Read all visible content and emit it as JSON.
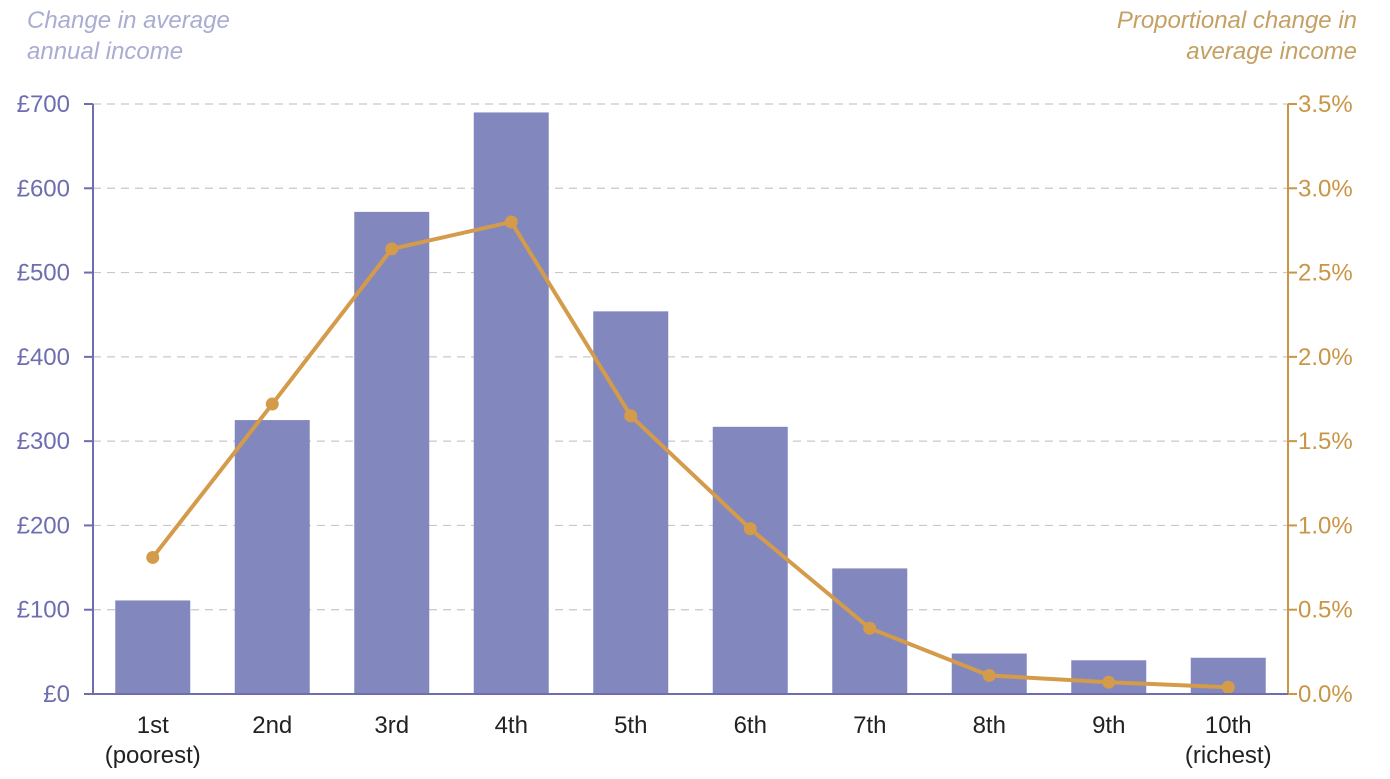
{
  "chart_data": {
    "type": "bar",
    "categories": [
      [
        "1st",
        "(poorest)"
      ],
      [
        "2nd"
      ],
      [
        "3rd"
      ],
      [
        "4th"
      ],
      [
        "5th"
      ],
      [
        "6th"
      ],
      [
        "7th"
      ],
      [
        "8th"
      ],
      [
        "9th"
      ],
      [
        "10th",
        "(richest)"
      ]
    ],
    "series": [
      {
        "type": "bar",
        "axis": "left",
        "values": [
          111,
          325,
          572,
          690,
          454,
          317,
          149,
          48,
          40,
          43
        ]
      },
      {
        "type": "line",
        "axis": "right",
        "values": [
          0.81,
          1.72,
          2.64,
          2.8,
          1.65,
          0.98,
          0.39,
          0.11,
          0.07,
          0.04
        ]
      }
    ],
    "y_left": {
      "label_lines": [
        "Change in average",
        "annual income"
      ],
      "ticks": [
        "£0",
        "£100",
        "£200",
        "£300",
        "£400",
        "£500",
        "£600",
        "£700"
      ],
      "ylim": [
        0,
        700
      ]
    },
    "y_right": {
      "label_lines": [
        "Proportional change in",
        "average income"
      ],
      "ticks": [
        "0.0%",
        "0.5%",
        "1.0%",
        "1.5%",
        "2.0%",
        "2.5%",
        "3.0%",
        "3.5%"
      ],
      "ylim": [
        0,
        3.5
      ]
    },
    "grid": true,
    "colors": {
      "bar": "#8288bd",
      "line": "#d49b4a",
      "left_axis": "#6d6db0",
      "right_axis": "#c99546",
      "left_title": "#a9acd3",
      "right_title": "#c4a064",
      "grid": "#c8c8c8"
    }
  }
}
